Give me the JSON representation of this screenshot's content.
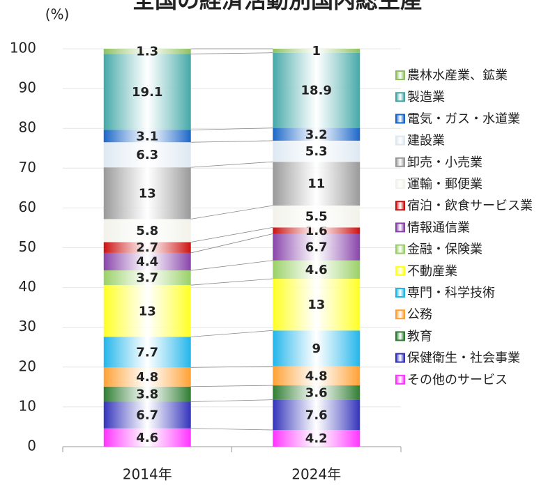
{
  "chart_data": {
    "type": "stacked_bar",
    "title": "全国の経済活動別国内総生産",
    "y_label": "(%)",
    "categories": [
      "2014年",
      "2024年"
    ],
    "ylim": [
      0,
      100
    ],
    "yticks": [
      0,
      10,
      20,
      30,
      40,
      50,
      60,
      70,
      80,
      90,
      100
    ],
    "series": [
      {
        "name": "その他のサービス",
        "color": "#ff33ff",
        "values": [
          4.6,
          4.2
        ]
      },
      {
        "name": "保健衛生・社会事業",
        "color": "#3333bb",
        "values": [
          6.7,
          7.6
        ]
      },
      {
        "name": "教育",
        "color": "#2e7d32",
        "values": [
          3.8,
          3.6
        ]
      },
      {
        "name": "公務",
        "color": "#ffa033",
        "values": [
          4.8,
          4.8
        ]
      },
      {
        "name": "専門・科学技術",
        "color": "#22b5ea",
        "values": [
          7.7,
          9.0
        ]
      },
      {
        "name": "不動産業",
        "color": "#ffff22",
        "values": [
          13.0,
          13.0
        ]
      },
      {
        "name": "金融・保険業",
        "color": "#99d066",
        "values": [
          3.7,
          4.6
        ]
      },
      {
        "name": "情報通信業",
        "color": "#8844aa",
        "values": [
          4.4,
          6.7
        ]
      },
      {
        "name": "宿泊・飲食サービス業",
        "color": "#cc1111",
        "values": [
          2.7,
          1.6
        ]
      },
      {
        "name": "運輸・郵便業",
        "color": "#f2f2ea",
        "values": [
          5.8,
          5.5
        ]
      },
      {
        "name": "卸売・小売業",
        "color": "#999999",
        "values": [
          13.0,
          11.0
        ]
      },
      {
        "name": "建設業",
        "color": "#dde8f2",
        "values": [
          6.3,
          5.3
        ]
      },
      {
        "name": "電気・ガス・水道業",
        "color": "#1a66c8",
        "values": [
          3.1,
          3.2
        ]
      },
      {
        "name": "製造業",
        "color": "#44a8a8",
        "values": [
          19.1,
          18.9
        ]
      },
      {
        "name": "農林水産業、鉱業",
        "color": "#8fc060",
        "values": [
          1.3,
          1.0
        ]
      }
    ]
  }
}
